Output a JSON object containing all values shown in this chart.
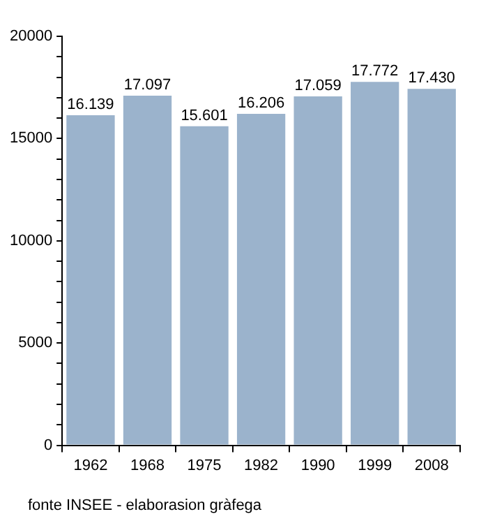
{
  "chart_data": {
    "type": "bar",
    "categories": [
      "1962",
      "1968",
      "1975",
      "1982",
      "1990",
      "1999",
      "2008"
    ],
    "values": [
      16139,
      17097,
      15601,
      16206,
      17059,
      17772,
      17430
    ],
    "value_labels": [
      "16.139",
      "17.097",
      "15.601",
      "16.206",
      "17.059",
      "17.772",
      "17.430"
    ],
    "color": "#9bb3cc",
    "ylim": [
      0,
      20000
    ],
    "yticks": [
      0,
      {
        "value": 1000,
        "label": null
      },
      {
        "value": 2000,
        "label": null
      },
      {
        "value": 3000,
        "label": null
      },
      {
        "value": 4000,
        "label": null
      },
      5000,
      {
        "value": 6000,
        "label": null
      },
      {
        "value": 7000,
        "label": null
      },
      {
        "value": 8000,
        "label": null
      },
      {
        "value": 9000,
        "label": null
      },
      10000,
      {
        "value": 11000,
        "label": null
      },
      {
        "value": 12000,
        "label": null
      },
      {
        "value": 13000,
        "label": null
      },
      {
        "value": 14000,
        "label": null
      },
      15000,
      {
        "value": 16000,
        "label": null
      },
      {
        "value": 17000,
        "label": null
      },
      {
        "value": 18000,
        "label": null
      },
      {
        "value": 19000,
        "label": null
      },
      20000
    ],
    "grid": false,
    "legend": false,
    "annotations": [
      "fonte INSEE - elaborasion gràfega"
    ]
  }
}
